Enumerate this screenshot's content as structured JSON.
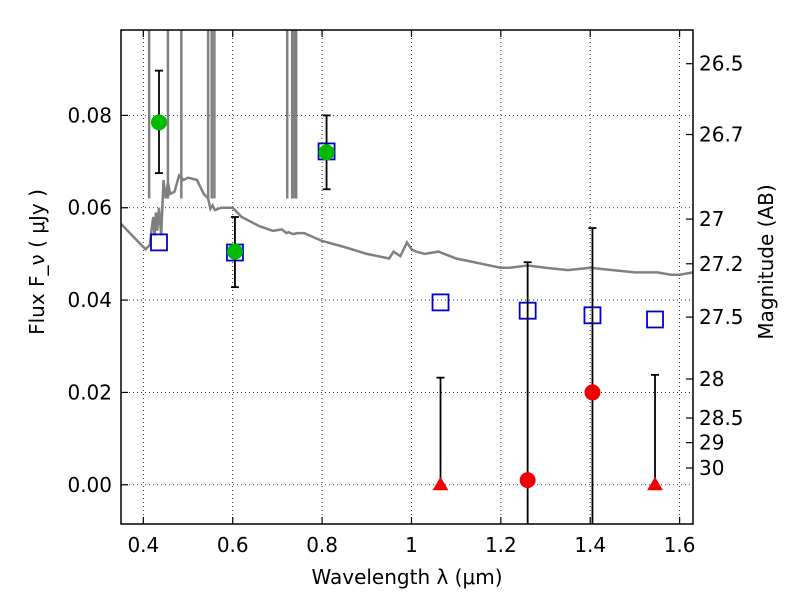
{
  "chart_data": {
    "type": "scatter",
    "xlabel": "Wavelength  λ (μm)",
    "ylabel": "Flux  F_ν  ( μJy )",
    "ylabel_right": "Magnitude (AB)",
    "xlim": [
      0.35,
      1.63
    ],
    "ylim": [
      -0.0085,
      0.0985
    ],
    "grid": true,
    "x_ticks": [
      {
        "value": 0.4,
        "label": "0.4"
      },
      {
        "value": 0.6,
        "label": "0.6"
      },
      {
        "value": 0.8,
        "label": "0.8"
      },
      {
        "value": 1.0,
        "label": "1"
      },
      {
        "value": 1.2,
        "label": "1.2"
      },
      {
        "value": 1.4,
        "label": "1.4"
      },
      {
        "value": 1.6,
        "label": "1.6"
      }
    ],
    "y_ticks": [
      {
        "value": 0.0,
        "label": "0.00"
      },
      {
        "value": 0.02,
        "label": "0.02"
      },
      {
        "value": 0.04,
        "label": "0.04"
      },
      {
        "value": 0.06,
        "label": "0.06"
      },
      {
        "value": 0.08,
        "label": "0.08"
      }
    ],
    "mag_ticks": [
      {
        "value": 26.5,
        "label": "26.5"
      },
      {
        "value": 26.7,
        "label": "26.7"
      },
      {
        "value": 27.0,
        "label": "27"
      },
      {
        "value": 27.2,
        "label": "27.2"
      },
      {
        "value": 27.5,
        "label": "27.5"
      },
      {
        "value": 28.0,
        "label": "28"
      },
      {
        "value": 28.5,
        "label": "28.5"
      },
      {
        "value": 29.0,
        "label": "29"
      },
      {
        "value": 30.0,
        "label": "30"
      }
    ],
    "series": [
      {
        "kind": "line",
        "color": "#808080",
        "x": [
          0.35,
          0.37,
          0.39,
          0.405,
          0.415,
          0.418,
          0.422,
          0.425,
          0.428,
          0.431,
          0.435,
          0.44,
          0.445,
          0.45,
          0.455,
          0.46,
          0.47,
          0.48,
          0.49,
          0.5,
          0.52,
          0.535,
          0.545,
          0.55,
          0.555,
          0.56,
          0.575,
          0.6,
          0.62,
          0.64,
          0.66,
          0.69,
          0.71,
          0.72,
          0.725,
          0.735,
          0.745,
          0.76,
          0.8,
          0.85,
          0.9,
          0.95,
          0.96,
          0.975,
          0.99,
          1.0,
          1.01,
          1.03,
          1.06,
          1.1,
          1.15,
          1.2,
          1.22,
          1.26,
          1.3,
          1.35,
          1.4,
          1.45,
          1.5,
          1.55,
          1.58,
          1.6,
          1.63
        ],
        "y": [
          0.0565,
          0.0545,
          0.0525,
          0.051,
          0.052,
          0.055,
          0.058,
          0.054,
          0.059,
          0.055,
          0.06,
          0.054,
          0.066,
          0.062,
          0.0655,
          0.063,
          0.0635,
          0.067,
          0.066,
          0.0665,
          0.066,
          0.063,
          0.062,
          0.0598,
          0.0605,
          0.0595,
          0.06,
          0.06,
          0.058,
          0.057,
          0.056,
          0.055,
          0.0553,
          0.0545,
          0.0547,
          0.0543,
          0.0545,
          0.0545,
          0.0528,
          0.0515,
          0.05,
          0.049,
          0.0505,
          0.0495,
          0.0525,
          0.051,
          0.0505,
          0.05,
          0.0505,
          0.049,
          0.048,
          0.047,
          0.047,
          0.0475,
          0.047,
          0.0465,
          0.047,
          0.0465,
          0.046,
          0.046,
          0.0455,
          0.0455,
          0.046
        ]
      },
      {
        "kind": "spikes",
        "color": "#808080",
        "x": [
          0.413,
          0.455,
          0.485,
          0.545,
          0.553,
          0.559,
          0.722,
          0.733,
          0.738,
          0.742
        ],
        "y_top": [
          0.0985,
          0.0985,
          0.0985,
          0.0985,
          0.0985,
          0.0985,
          0.0985,
          0.0985,
          0.0985,
          0.0985
        ]
      },
      {
        "kind": "markers",
        "marker": "square-open",
        "color": "#0000cc",
        "x": [
          0.435,
          0.605,
          0.81,
          1.065,
          1.26,
          1.405,
          1.545
        ],
        "y": [
          0.0525,
          0.0503,
          0.0722,
          0.0395,
          0.0377,
          0.0367,
          0.0358
        ]
      },
      {
        "kind": "markers",
        "marker": "circle",
        "color": "#00bb00",
        "x": [
          0.435,
          0.605,
          0.81
        ],
        "y": [
          0.0785,
          0.0505,
          0.072
        ],
        "yerr_low": [
          0.0675,
          0.0428,
          0.064
        ],
        "yerr_high": [
          0.0897,
          0.058,
          0.08
        ]
      },
      {
        "kind": "markers",
        "marker": "circle",
        "color": "#ee0000",
        "x": [
          1.26,
          1.405
        ],
        "y": [
          0.001,
          0.02
        ],
        "yerr_low": [
          -0.0085,
          -0.0085
        ],
        "yerr_high": [
          0.0482,
          0.0556
        ]
      },
      {
        "kind": "markers",
        "marker": "triangle",
        "color": "#ee0000",
        "x": [
          1.065,
          1.545
        ],
        "y": [
          0.0,
          0.0
        ],
        "yerr_low": [
          0.0,
          0.0
        ],
        "yerr_high": [
          0.0232,
          0.0238
        ]
      }
    ]
  }
}
